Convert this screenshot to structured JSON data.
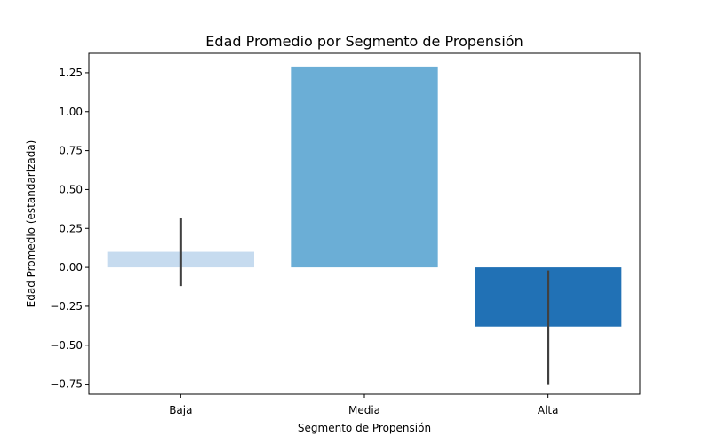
{
  "chart_data": {
    "type": "bar",
    "title": "Edad Promedio por Segmento de Propensión",
    "xlabel": "Segmento de Propensión",
    "ylabel": "Edad Promedio (estandarizada)",
    "categories": [
      "Baja",
      "Media",
      "Alta"
    ],
    "values": [
      0.1,
      1.29,
      -0.38
    ],
    "error_bars": [
      [
        -0.12,
        0.32
      ],
      null,
      [
        -0.75,
        -0.02
      ]
    ],
    "ylim": [
      -0.815,
      1.375
    ],
    "yticks": [
      -0.75,
      -0.5,
      -0.25,
      0.0,
      0.25,
      0.5,
      0.75,
      1.0,
      1.25
    ],
    "ytick_labels": [
      "−0.75",
      "−0.50",
      "−0.25",
      "0.00",
      "0.25",
      "0.50",
      "0.75",
      "1.00",
      "1.25"
    ],
    "colors": [
      "#c6dbef",
      "#6baed6",
      "#2171b5"
    ],
    "error_bar_color": "#404040",
    "grid": false,
    "legend": "none"
  }
}
